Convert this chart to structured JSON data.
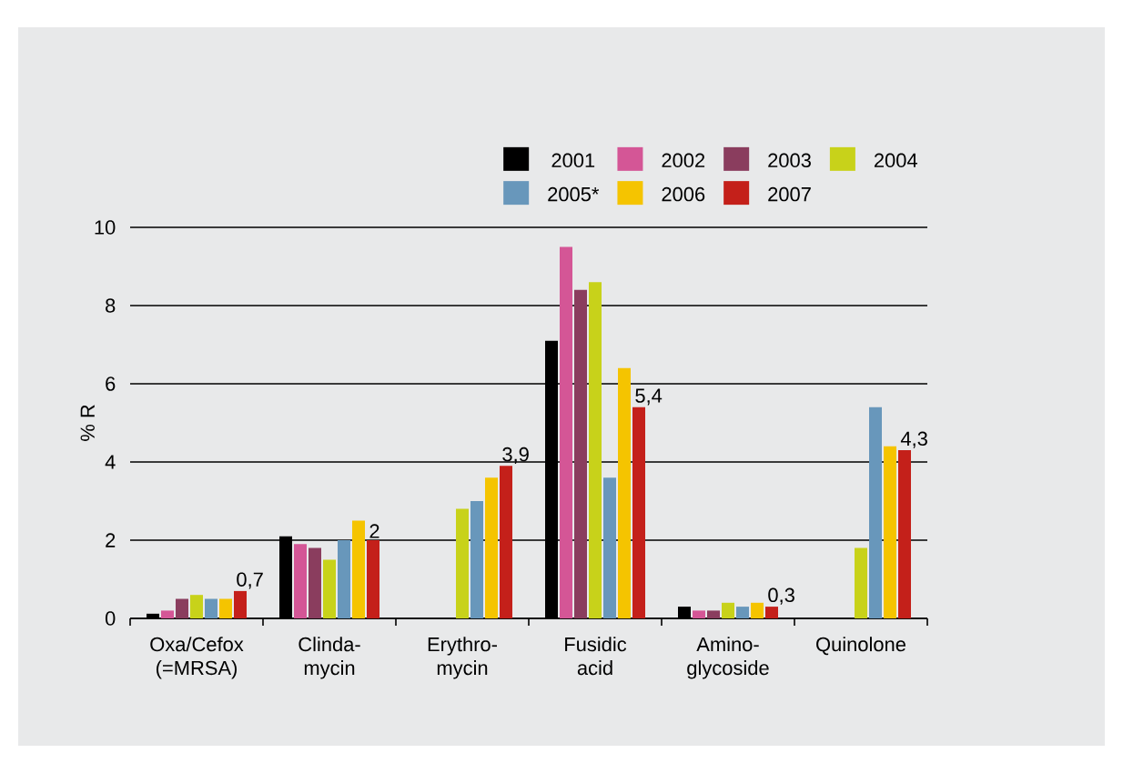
{
  "chart_data": {
    "type": "bar",
    "ylabel": "% R",
    "categories": [
      "Oxa/Cefox (=MRSA)",
      "Clinda-mycin",
      "Erythro-mycin",
      "Fusidic acid",
      "Amino-glycoside",
      "Quinolone"
    ],
    "series": [
      {
        "name": "2001",
        "color": "#000000",
        "values": [
          0.12,
          2.1,
          null,
          7.1,
          0.3,
          null
        ]
      },
      {
        "name": "2002",
        "color": "#d45696",
        "values": [
          0.2,
          1.9,
          null,
          9.5,
          0.2,
          null
        ]
      },
      {
        "name": "2003",
        "color": "#8a3d5e",
        "values": [
          0.5,
          1.8,
          null,
          8.4,
          0.2,
          null
        ]
      },
      {
        "name": "2004",
        "color": "#c8d21a",
        "values": [
          0.6,
          1.5,
          2.8,
          8.6,
          0.4,
          1.8
        ]
      },
      {
        "name": "2005*",
        "color": "#6897bb",
        "values": [
          0.5,
          2.0,
          3.0,
          3.6,
          0.3,
          5.4
        ]
      },
      {
        "name": "2006",
        "color": "#f5c400",
        "values": [
          0.5,
          2.5,
          3.6,
          6.4,
          0.4,
          4.4
        ]
      },
      {
        "name": "2007",
        "color": "#c4201a",
        "values": [
          0.7,
          2.0,
          3.9,
          5.4,
          0.3,
          4.3
        ],
        "value_labels": [
          "0,7",
          "2",
          "3,9",
          "5,4",
          "0,3",
          "4,3"
        ]
      }
    ],
    "ylim": [
      0,
      10
    ],
    "yticks": [
      0,
      2,
      4,
      6,
      8,
      10
    ],
    "grid": "y",
    "legend": "top right"
  }
}
